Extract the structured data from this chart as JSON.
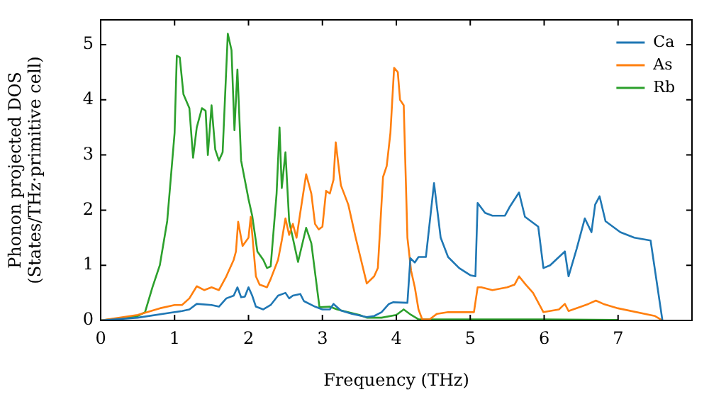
{
  "chart_data": {
    "type": "line",
    "xlabel": "Frequency (THz)",
    "ylabel": "Phonon projected DOS\n(States/THz·primitive cell)",
    "xlim": [
      0,
      8
    ],
    "ylim": [
      0,
      5.45
    ],
    "xticks": [
      0,
      1,
      2,
      3,
      4,
      5,
      6,
      7
    ],
    "yticks": [
      0,
      1,
      2,
      3,
      4,
      5
    ],
    "legend": "top right",
    "marker": "none",
    "line_style": "solid",
    "series": [
      {
        "name": "Ca",
        "color": "#1f77b4",
        "x": [
          0,
          0.5,
          1.0,
          1.1,
          1.2,
          1.3,
          1.5,
          1.6,
          1.7,
          1.8,
          1.85,
          1.9,
          1.95,
          2.0,
          2.05,
          2.1,
          2.2,
          2.3,
          2.4,
          2.5,
          2.55,
          2.6,
          2.7,
          2.75,
          2.9,
          3.0,
          3.1,
          3.15,
          3.25,
          3.4,
          3.6,
          3.7,
          3.8,
          3.9,
          3.96,
          4.15,
          4.19,
          4.25,
          4.3,
          4.4,
          4.51,
          4.6,
          4.7,
          4.85,
          5.0,
          5.07,
          5.1,
          5.2,
          5.3,
          5.47,
          5.53,
          5.66,
          5.74,
          5.92,
          5.99,
          6.08,
          6.28,
          6.33,
          6.44,
          6.55,
          6.64,
          6.69,
          6.75,
          6.83,
          7.03,
          7.22,
          7.44,
          7.6
        ],
        "values": [
          0,
          0.05,
          0.15,
          0.17,
          0.2,
          0.3,
          0.28,
          0.25,
          0.4,
          0.45,
          0.6,
          0.42,
          0.43,
          0.6,
          0.45,
          0.25,
          0.2,
          0.28,
          0.45,
          0.5,
          0.4,
          0.45,
          0.48,
          0.35,
          0.25,
          0.2,
          0.2,
          0.3,
          0.18,
          0.12,
          0.06,
          0.08,
          0.15,
          0.3,
          0.33,
          0.32,
          1.13,
          1.05,
          1.15,
          1.15,
          2.49,
          1.5,
          1.15,
          0.95,
          0.82,
          0.8,
          2.13,
          1.95,
          1.9,
          1.9,
          2.05,
          2.32,
          1.88,
          1.7,
          0.95,
          1.0,
          1.25,
          0.8,
          1.3,
          1.85,
          1.6,
          2.1,
          2.25,
          1.8,
          1.6,
          1.5,
          1.45,
          0
        ]
      },
      {
        "name": "As",
        "color": "#ff7f0e",
        "x": [
          0,
          0.5,
          0.8,
          1.0,
          1.1,
          1.2,
          1.3,
          1.4,
          1.5,
          1.6,
          1.7,
          1.8,
          1.83,
          1.86,
          1.92,
          2.0,
          2.03,
          2.1,
          2.15,
          2.25,
          2.3,
          2.4,
          2.45,
          2.5,
          2.55,
          2.6,
          2.65,
          2.7,
          2.78,
          2.85,
          2.9,
          2.95,
          3.0,
          3.05,
          3.1,
          3.15,
          3.18,
          3.25,
          3.35,
          3.45,
          3.6,
          3.7,
          3.75,
          3.82,
          3.87,
          3.92,
          3.97,
          4.02,
          4.05,
          4.1,
          4.15,
          4.2,
          4.25,
          4.3,
          4.35,
          4.45,
          4.55,
          4.7,
          5.05,
          5.1,
          5.15,
          5.3,
          5.5,
          5.6,
          5.66,
          5.75,
          5.85,
          5.99,
          6.2,
          6.28,
          6.33,
          6.5,
          6.6,
          6.7,
          6.8,
          7.0,
          7.5,
          7.6
        ],
        "values": [
          0,
          0.1,
          0.22,
          0.28,
          0.28,
          0.4,
          0.62,
          0.55,
          0.6,
          0.55,
          0.8,
          1.1,
          1.25,
          1.79,
          1.35,
          1.5,
          1.88,
          0.8,
          0.65,
          0.6,
          0.75,
          1.1,
          1.45,
          1.85,
          1.55,
          1.75,
          1.5,
          1.95,
          2.65,
          2.3,
          1.75,
          1.65,
          1.7,
          2.35,
          2.3,
          2.55,
          3.23,
          2.45,
          2.1,
          1.5,
          0.67,
          0.8,
          0.95,
          2.6,
          2.8,
          3.4,
          4.58,
          4.5,
          4.0,
          3.9,
          1.5,
          0.9,
          0.6,
          0.2,
          0.02,
          0.02,
          0.12,
          0.15,
          0.15,
          0.6,
          0.6,
          0.55,
          0.6,
          0.65,
          0.8,
          0.65,
          0.5,
          0.15,
          0.2,
          0.3,
          0.17,
          0.25,
          0.3,
          0.36,
          0.3,
          0.22,
          0.08,
          0
        ]
      },
      {
        "name": "Rb",
        "color": "#2ca02c",
        "x": [
          0,
          0.5,
          0.6,
          0.7,
          0.8,
          0.9,
          1.0,
          1.03,
          1.07,
          1.12,
          1.2,
          1.25,
          1.3,
          1.37,
          1.42,
          1.45,
          1.5,
          1.55,
          1.6,
          1.65,
          1.72,
          1.77,
          1.81,
          1.85,
          1.9,
          2.0,
          2.05,
          2.12,
          2.2,
          2.25,
          2.3,
          2.38,
          2.42,
          2.45,
          2.5,
          2.55,
          2.67,
          2.78,
          2.85,
          2.96,
          3.1,
          3.2,
          3.5,
          3.6,
          3.8,
          4.0,
          4.1,
          4.2,
          4.3,
          5.0,
          6.0,
          7.0
        ],
        "values": [
          0,
          0.08,
          0.15,
          0.6,
          1.0,
          1.8,
          3.4,
          4.8,
          4.77,
          4.1,
          3.85,
          2.95,
          3.5,
          3.85,
          3.8,
          3.0,
          3.9,
          3.1,
          2.9,
          3.05,
          5.2,
          4.9,
          3.45,
          4.55,
          2.9,
          2.2,
          1.9,
          1.25,
          1.1,
          0.95,
          0.98,
          2.3,
          3.5,
          2.4,
          3.05,
          1.8,
          1.06,
          1.68,
          1.4,
          0.24,
          0.25,
          0.2,
          0.1,
          0.05,
          0.05,
          0.1,
          0.2,
          0.1,
          0.02,
          0.02,
          0.02,
          0.01
        ]
      }
    ]
  }
}
